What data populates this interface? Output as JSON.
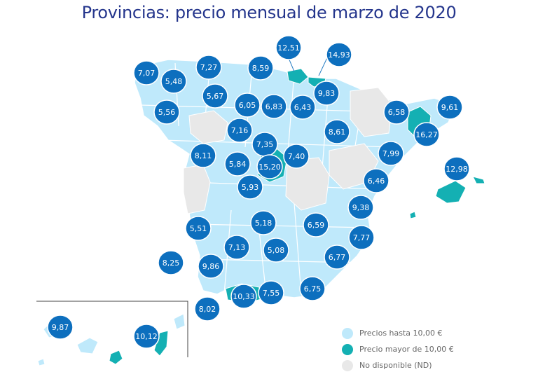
{
  "title": "Provincias: precio mensual de marzo de 2020",
  "colors": {
    "light": "#bfe9fb",
    "teal": "#14b0b3",
    "nd": "#e8e8e8",
    "marker": "#0d6fbe",
    "title": "#24358c"
  },
  "legend": [
    {
      "label": "Precios hasta 10,00 €",
      "color": "#bfe9fb"
    },
    {
      "label": "Precio mayor de 10,00 €",
      "color": "#14b0b3"
    },
    {
      "label": "No disponible (ND)",
      "color": "#e8e8e8"
    }
  ],
  "markers": [
    {
      "value": "7,07"
    },
    {
      "value": "5,48"
    },
    {
      "value": "5,56"
    },
    {
      "value": "7,27"
    },
    {
      "value": "8,59"
    },
    {
      "value": "12,51"
    },
    {
      "value": "14,93"
    },
    {
      "value": "5,67"
    },
    {
      "value": "6,05"
    },
    {
      "value": "6,83"
    },
    {
      "value": "6,43"
    },
    {
      "value": "9,83"
    },
    {
      "value": "7,16"
    },
    {
      "value": "8,61"
    },
    {
      "value": "6,58"
    },
    {
      "value": "9,61"
    },
    {
      "value": "16,27"
    },
    {
      "value": "7,35"
    },
    {
      "value": "8,11"
    },
    {
      "value": "5,84"
    },
    {
      "value": "15,20"
    },
    {
      "value": "7,40"
    },
    {
      "value": "7,99"
    },
    {
      "value": "12,98"
    },
    {
      "value": "5,93"
    },
    {
      "value": "6,46"
    },
    {
      "value": "9,38"
    },
    {
      "value": "5,51"
    },
    {
      "value": "5,18"
    },
    {
      "value": "6,59"
    },
    {
      "value": "7,77"
    },
    {
      "value": "7,13"
    },
    {
      "value": "5,08"
    },
    {
      "value": "8,25"
    },
    {
      "value": "9,86"
    },
    {
      "value": "6,77"
    },
    {
      "value": "10,33"
    },
    {
      "value": "7,55"
    },
    {
      "value": "6,75"
    },
    {
      "value": "8,02"
    },
    {
      "value": "9,87"
    },
    {
      "value": "10,12"
    }
  ]
}
